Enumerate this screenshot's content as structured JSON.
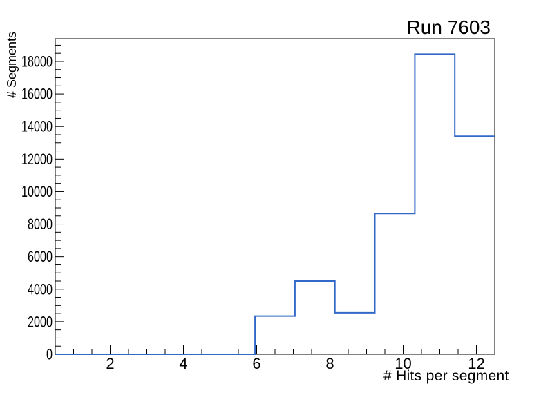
{
  "chart_data": {
    "type": "histogram",
    "title": "Run 7603",
    "xlabel": "# Hits per segment",
    "ylabel": "# Segments",
    "xlim": [
      0.5,
      12.5
    ],
    "ylim": [
      0,
      19400
    ],
    "n_bins": 11,
    "bin_edges": [
      0.5,
      1.591,
      2.682,
      3.773,
      4.864,
      5.955,
      7.045,
      8.136,
      9.227,
      10.318,
      11.409,
      12.5
    ],
    "values": [
      0,
      0,
      0,
      0,
      0,
      2350,
      4500,
      2550,
      8650,
      18450,
      13400
    ],
    "x_ticks": {
      "major": [
        2,
        4,
        6,
        8,
        10,
        12
      ],
      "minor_step": 0.5
    },
    "y_ticks": {
      "major": [
        0,
        2000,
        4000,
        6000,
        8000,
        10000,
        12000,
        14000,
        16000,
        18000
      ],
      "minor_step": 500
    },
    "legend": null,
    "grid": false,
    "style": {
      "line_color": "#3269c8",
      "axis_color": "#000000",
      "background": "#ffffff"
    }
  }
}
